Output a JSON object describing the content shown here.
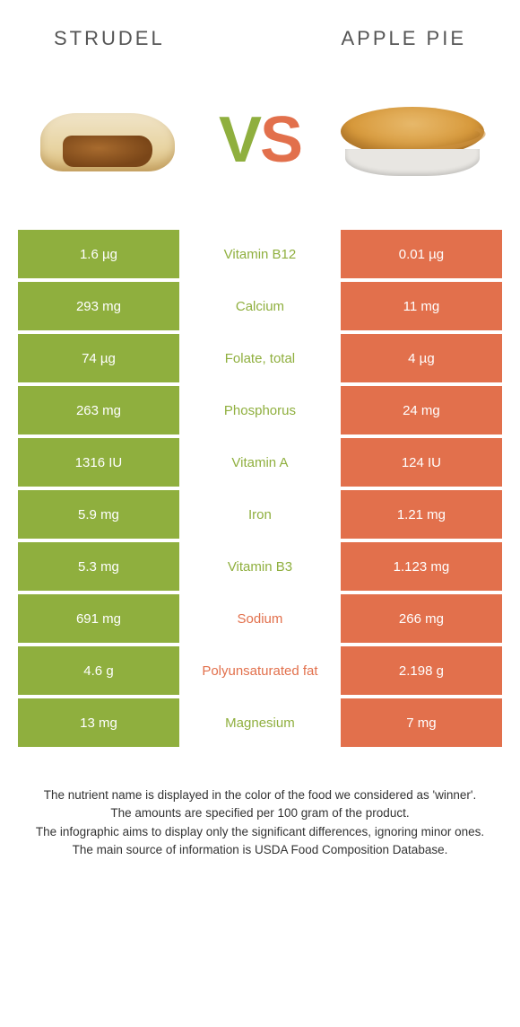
{
  "header": {
    "left": "STRUDEL",
    "right": "APPLE PIE"
  },
  "vs": {
    "v": "V",
    "s": "S"
  },
  "colors": {
    "green": "#8faf3e",
    "orange": "#e2704c",
    "text_dark": "#333333"
  },
  "table": {
    "left_bg": "#8faf3e",
    "right_bg": "#e2704c",
    "rows": [
      {
        "left": "1.6 µg",
        "label": "Vitamin B12",
        "right": "0.01 µg",
        "winner": "left"
      },
      {
        "left": "293 mg",
        "label": "Calcium",
        "right": "11 mg",
        "winner": "left"
      },
      {
        "left": "74 µg",
        "label": "Folate, total",
        "right": "4 µg",
        "winner": "left"
      },
      {
        "left": "263 mg",
        "label": "Phosphorus",
        "right": "24 mg",
        "winner": "left"
      },
      {
        "left": "1316 IU",
        "label": "Vitamin A",
        "right": "124 IU",
        "winner": "left"
      },
      {
        "left": "5.9 mg",
        "label": "Iron",
        "right": "1.21 mg",
        "winner": "left"
      },
      {
        "left": "5.3 mg",
        "label": "Vitamin B3",
        "right": "1.123 mg",
        "winner": "left"
      },
      {
        "left": "691 mg",
        "label": "Sodium",
        "right": "266 mg",
        "winner": "right"
      },
      {
        "left": "4.6 g",
        "label": "Polyunsaturated fat",
        "right": "2.198 g",
        "winner": "right"
      },
      {
        "left": "13 mg",
        "label": "Magnesium",
        "right": "7 mg",
        "winner": "left"
      }
    ]
  },
  "footer": {
    "line1": "The nutrient name is displayed in the color of the food we considered as 'winner'.",
    "line2": "The amounts are specified per 100 gram of the product.",
    "line3": "The infographic aims to display only the significant differences, ignoring minor ones.",
    "line4": "The main source of information is USDA Food Composition Database."
  }
}
